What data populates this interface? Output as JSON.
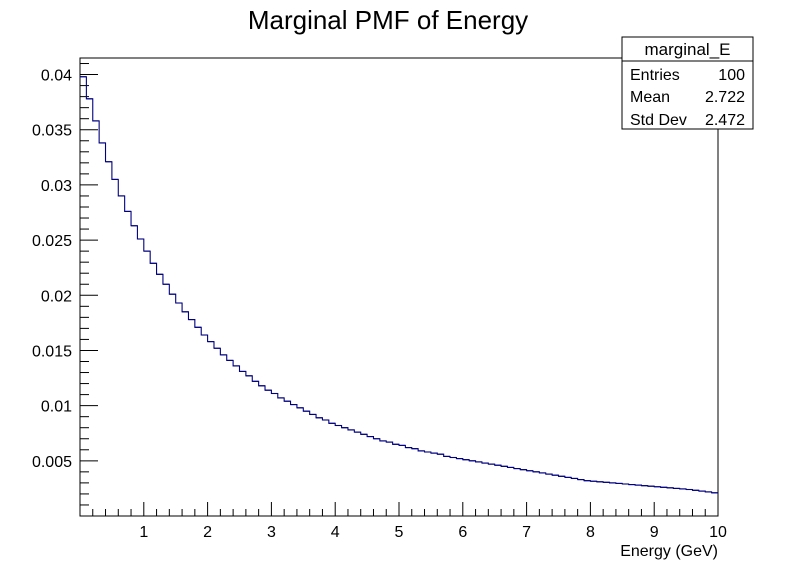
{
  "chart_data": {
    "type": "histogram-step",
    "title": "Marginal PMF of Energy",
    "xlabel": "Energy (GeV)",
    "ylabel": "",
    "xlim": [
      0,
      10
    ],
    "ylim": [
      0,
      0.0415
    ],
    "x_ticks": [
      1,
      2,
      3,
      4,
      5,
      6,
      7,
      8,
      9,
      10
    ],
    "y_ticks": [
      0.005,
      0.01,
      0.015,
      0.02,
      0.025,
      0.03,
      0.035,
      0.04
    ],
    "y_tick_labels": [
      "0.005",
      "0.01",
      "0.015",
      "0.02",
      "0.025",
      "0.03",
      "0.035",
      "0.04"
    ],
    "grid": false,
    "line_color": "#000080",
    "stats_box": {
      "name": "marginal_E",
      "rows": [
        {
          "label": "Entries",
          "value": "100"
        },
        {
          "label": "Mean",
          "value": "2.722"
        },
        {
          "label": "Std Dev",
          "value": "2.472"
        }
      ],
      "placement": "top-right"
    },
    "bin_edges": [
      0.0,
      0.1,
      0.2,
      0.3,
      0.4,
      0.5,
      0.6,
      0.7,
      0.8,
      0.9,
      1.0,
      1.1,
      1.2,
      1.3,
      1.4,
      1.5,
      1.6,
      1.7,
      1.8,
      1.9,
      2.0,
      2.1,
      2.2,
      2.3,
      2.4,
      2.5,
      2.6,
      2.7,
      2.8,
      2.9,
      3.0,
      3.1,
      3.2,
      3.3,
      3.4,
      3.5,
      3.6,
      3.7,
      3.8,
      3.9,
      4.0,
      4.1,
      4.2,
      4.3,
      4.4,
      4.5,
      4.6,
      4.7,
      4.8,
      4.9,
      5.0,
      5.1,
      5.2,
      5.3,
      5.4,
      5.5,
      5.6,
      5.7,
      5.8,
      5.9,
      6.0,
      6.1,
      6.2,
      6.3,
      6.4,
      6.5,
      6.6,
      6.7,
      6.8,
      6.9,
      7.0,
      7.1,
      7.2,
      7.3,
      7.4,
      7.5,
      7.6,
      7.7,
      7.8,
      7.9,
      8.0,
      8.1,
      8.2,
      8.3,
      8.4,
      8.5,
      8.6,
      8.7,
      8.8,
      8.9,
      9.0,
      9.1,
      9.2,
      9.3,
      9.4,
      9.5,
      9.6,
      9.7,
      9.8,
      9.9,
      10.0
    ],
    "values": [
      0.0398,
      0.0378,
      0.0358,
      0.0338,
      0.0321,
      0.0305,
      0.029,
      0.0276,
      0.0263,
      0.0251,
      0.024,
      0.0229,
      0.0219,
      0.021,
      0.0201,
      0.0193,
      0.0185,
      0.0178,
      0.0171,
      0.0164,
      0.0158,
      0.0152,
      0.0146,
      0.0141,
      0.0136,
      0.0131,
      0.0127,
      0.0122,
      0.0118,
      0.0114,
      0.0111,
      0.0107,
      0.0104,
      0.0101,
      0.0098,
      0.0095,
      0.0092,
      0.0089,
      0.0087,
      0.0084,
      0.0082,
      0.008,
      0.0078,
      0.0076,
      0.0074,
      0.0072,
      0.007,
      0.0068,
      0.0067,
      0.0065,
      0.0064,
      0.0062,
      0.0061,
      0.0059,
      0.0058,
      0.0057,
      0.0056,
      0.0054,
      0.0053,
      0.0052,
      0.0051,
      0.005,
      0.0049,
      0.0048,
      0.0047,
      0.0046,
      0.0045,
      0.0044,
      0.0043,
      0.0042,
      0.0041,
      0.004,
      0.0039,
      0.0038,
      0.0037,
      0.0036,
      0.0035,
      0.0034,
      0.0033,
      0.0032,
      0.00315,
      0.0031,
      0.00305,
      0.003,
      0.00295,
      0.0029,
      0.00285,
      0.0028,
      0.00275,
      0.0027,
      0.00265,
      0.0026,
      0.00255,
      0.0025,
      0.00245,
      0.0024,
      0.00233,
      0.00226,
      0.00218,
      0.0021
    ]
  }
}
